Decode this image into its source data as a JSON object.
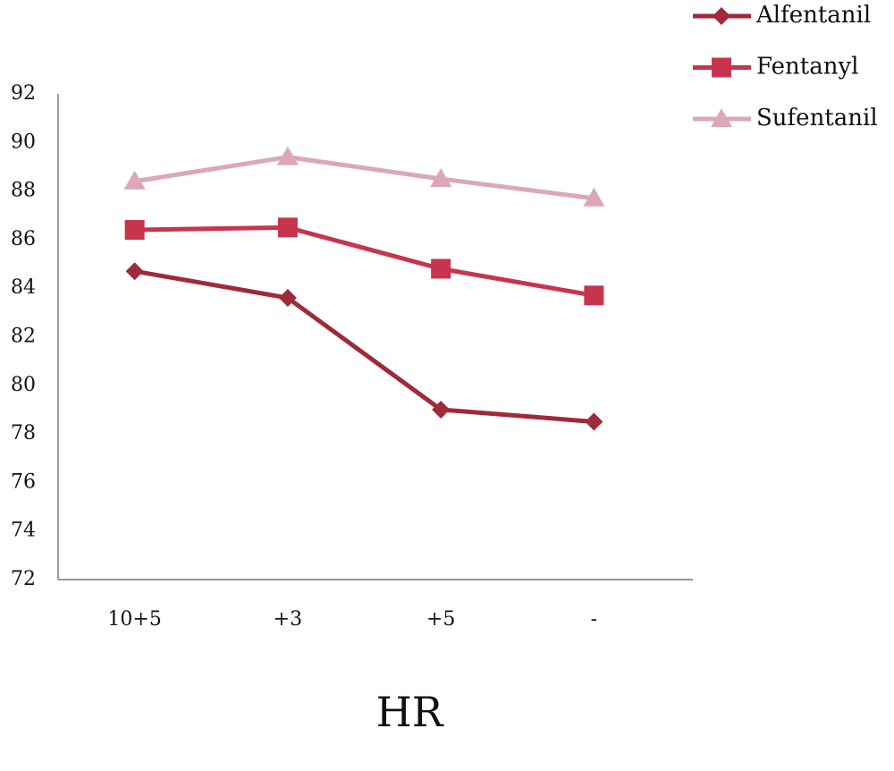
{
  "chart_data": {
    "type": "line",
    "x_label": "HR",
    "categories": [
      "10+5",
      "+3",
      "+5",
      "-"
    ],
    "series": [
      {
        "name": "Alfentanil",
        "color": "#9e2a3a",
        "marker": "diamond",
        "values": [
          84.7,
          83.6,
          79.0,
          78.5
        ]
      },
      {
        "name": "Fentanyl",
        "color": "#c8344d",
        "marker": "square",
        "values": [
          86.4,
          86.5,
          84.8,
          83.7
        ]
      },
      {
        "name": "Sufentanil",
        "color": "#dca7b8",
        "marker": "triangle",
        "values": [
          88.4,
          89.4,
          88.5,
          87.7
        ]
      }
    ],
    "ylim": [
      72,
      92
    ],
    "yticks": [
      72,
      74,
      76,
      78,
      80,
      82,
      84,
      86,
      88,
      90,
      92
    ],
    "grid": false,
    "legend": "top-right"
  }
}
